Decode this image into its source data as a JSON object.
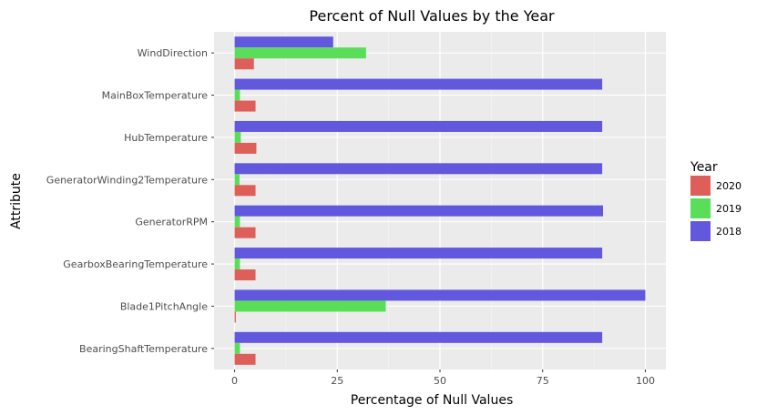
{
  "chart_data": {
    "type": "bar",
    "orientation": "horizontal",
    "title": "Percent of Null Values by the Year",
    "xlabel": "Percentage of Null Values",
    "ylabel": "Attribute",
    "xlim": [
      -5,
      105
    ],
    "xticks": [
      0,
      25,
      50,
      75,
      100
    ],
    "grid": true,
    "legend_title": "Year",
    "legend_position": "right",
    "categories": [
      "WindDirection",
      "MainBoxTemperature",
      "HubTemperature",
      "GeneratorWinding2Temperature",
      "GeneratorRPM",
      "GearboxBearingTemperature",
      "Blade1PitchAngle",
      "BearingShaftTemperature"
    ],
    "series": [
      {
        "name": "2018",
        "color": "#6158de",
        "values": [
          24,
          89.5,
          89.5,
          89.5,
          89.7,
          89.5,
          100,
          89.5
        ]
      },
      {
        "name": "2019",
        "color": "#5ade5a",
        "values": [
          32,
          1.3,
          1.5,
          1.2,
          1.3,
          1.3,
          36.8,
          1.3
        ]
      },
      {
        "name": "2020",
        "color": "#de5f5a",
        "values": [
          4.7,
          5.1,
          5.3,
          5.1,
          5.1,
          5.1,
          0.3,
          5.1
        ]
      }
    ],
    "legend_order": [
      "2020",
      "2019",
      "2018"
    ]
  }
}
